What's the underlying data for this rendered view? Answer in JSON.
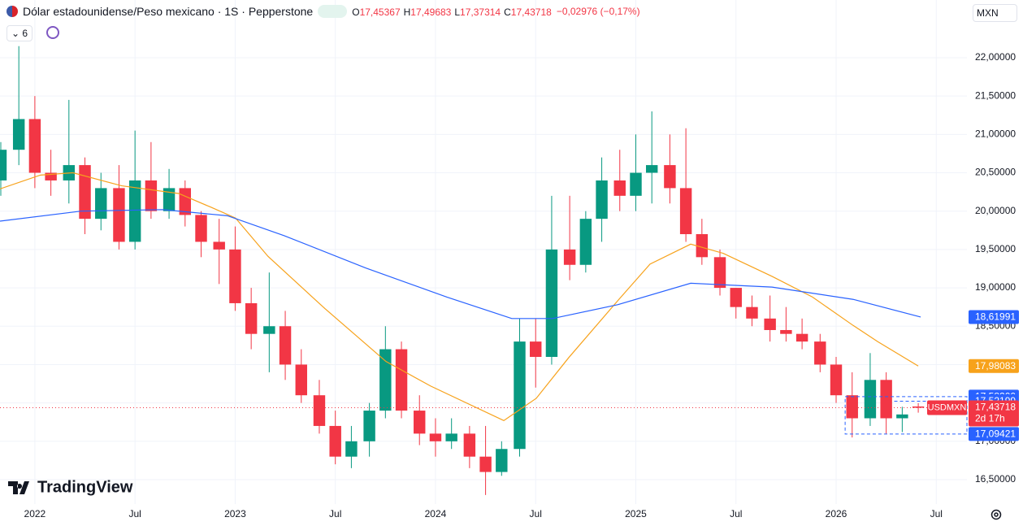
{
  "header": {
    "title": "Dólar estadounidense/Peso mexicano · 1S · Pepperstone",
    "ohlc": [
      {
        "key": "O",
        "text": "17,45367"
      },
      {
        "key": "H",
        "text": "17,49683"
      },
      {
        "key": "L",
        "text": "17,37314"
      },
      {
        "key": "C",
        "text": "17,43718"
      }
    ],
    "change": "−0,02976 (−0,17%)",
    "indicators_count": "6",
    "currency": "MXN"
  },
  "watermark": "TradingView",
  "chart_data": {
    "type": "candlestick",
    "xlim": [
      2021.826,
      2026.653
    ],
    "ylim": [
      16.182,
      22.752
    ],
    "grid": true,
    "xticks": [
      {
        "value": 2022,
        "label": "2022"
      },
      {
        "value": 2022.5,
        "label": "Jul"
      },
      {
        "value": 2023,
        "label": "2023"
      },
      {
        "value": 2023.5,
        "label": "Jul"
      },
      {
        "value": 2024,
        "label": "2024"
      },
      {
        "value": 2024.5,
        "label": "Jul"
      },
      {
        "value": 2025,
        "label": "2025"
      },
      {
        "value": 2025.5,
        "label": "Jul"
      },
      {
        "value": 2026,
        "label": "2026"
      },
      {
        "value": 2026.5,
        "label": "Jul"
      }
    ],
    "yticks": [
      {
        "value": 16.5,
        "label": "16,50000"
      },
      {
        "value": 17,
        "label": "17,00000"
      },
      {
        "value": 17.5,
        "label": "17,50000"
      },
      {
        "value": 18,
        "label": "18,00000"
      },
      {
        "value": 18.5,
        "label": "18,50000"
      },
      {
        "value": 19,
        "label": "19,00000"
      },
      {
        "value": 19.5,
        "label": "19,50000"
      },
      {
        "value": 20,
        "label": "20,00000"
      },
      {
        "value": 20.5,
        "label": "20,50000"
      },
      {
        "value": 21,
        "label": "21,00000"
      },
      {
        "value": 21.5,
        "label": "21,50000"
      },
      {
        "value": 22,
        "label": "22,00000"
      }
    ],
    "up_color": "#089981",
    "down_color": "#f23645",
    "candles": {
      "x": [
        2021.83,
        2021.92,
        2022.0,
        2022.08,
        2022.17,
        2022.25,
        2022.33,
        2022.42,
        2022.5,
        2022.58,
        2022.67,
        2022.75,
        2022.83,
        2022.92,
        2023.0,
        2023.08,
        2023.17,
        2023.25,
        2023.33,
        2023.42,
        2023.5,
        2023.58,
        2023.67,
        2023.75,
        2023.83,
        2023.92,
        2024.0,
        2024.08,
        2024.17,
        2024.25,
        2024.33,
        2024.42,
        2024.5,
        2024.58,
        2024.67,
        2024.75,
        2024.83,
        2024.92,
        2025.0,
        2025.08,
        2025.17,
        2025.25,
        2025.33,
        2025.42,
        2025.5,
        2025.58,
        2025.67,
        2025.75,
        2025.83,
        2025.92,
        2026.0,
        2026.08,
        2026.17,
        2026.25,
        2026.33,
        2026.41
      ],
      "open": [
        20.4,
        20.8,
        21.2,
        20.5,
        20.4,
        20.6,
        19.9,
        20.3,
        19.6,
        20.4,
        20.0,
        20.3,
        19.95,
        19.6,
        19.5,
        18.8,
        18.4,
        18.5,
        18.0,
        17.6,
        17.2,
        16.8,
        17.0,
        17.4,
        18.2,
        17.4,
        17.1,
        17.0,
        17.1,
        16.8,
        16.6,
        16.9,
        18.3,
        18.1,
        19.5,
        19.3,
        19.9,
        20.4,
        20.2,
        20.5,
        20.6,
        20.3,
        19.7,
        19.4,
        19.0,
        18.75,
        18.6,
        18.45,
        18.4,
        18.3,
        18.0,
        17.6,
        17.3,
        17.8,
        17.3,
        17.45367
      ],
      "high": [
        20.9,
        22.15,
        21.5,
        20.8,
        21.45,
        20.7,
        20.5,
        20.6,
        21.05,
        20.9,
        20.55,
        20.4,
        20.0,
        19.9,
        19.8,
        19.0,
        19.2,
        18.7,
        18.2,
        17.8,
        17.4,
        17.2,
        17.5,
        18.5,
        18.3,
        17.6,
        17.3,
        17.3,
        17.2,
        17.2,
        17.0,
        18.6,
        18.6,
        20.2,
        20.2,
        20.0,
        20.7,
        20.8,
        21.0,
        21.3,
        21.0,
        21.08,
        19.9,
        19.5,
        19.0,
        18.9,
        18.9,
        18.75,
        18.6,
        18.4,
        18.1,
        17.9,
        18.15,
        17.9,
        17.45,
        17.49683
      ],
      "low": [
        20.2,
        20.6,
        20.3,
        20.2,
        20.1,
        19.7,
        19.75,
        19.5,
        19.5,
        19.9,
        19.9,
        19.8,
        19.4,
        19.05,
        18.7,
        18.2,
        17.9,
        17.8,
        17.5,
        17.1,
        16.7,
        16.65,
        16.8,
        17.3,
        17.3,
        16.95,
        16.8,
        16.9,
        16.65,
        16.3,
        16.55,
        16.8,
        17.7,
        18.0,
        19.1,
        19.2,
        19.6,
        20.0,
        20.0,
        20.1,
        20.1,
        19.6,
        19.3,
        18.9,
        18.6,
        18.5,
        18.3,
        18.3,
        18.2,
        17.9,
        17.5,
        17.05,
        17.2,
        17.1,
        17.12,
        17.37314
      ],
      "close": [
        20.8,
        21.2,
        20.5,
        20.4,
        20.6,
        19.9,
        20.3,
        19.6,
        20.4,
        20.0,
        20.3,
        19.95,
        19.6,
        19.5,
        18.8,
        18.4,
        18.5,
        18.0,
        17.6,
        17.2,
        16.8,
        17.0,
        17.4,
        18.2,
        17.4,
        17.1,
        17.0,
        17.1,
        16.8,
        16.6,
        16.9,
        18.3,
        18.1,
        19.5,
        19.3,
        19.9,
        20.4,
        20.2,
        20.5,
        20.6,
        20.3,
        19.7,
        19.4,
        19.0,
        18.75,
        18.6,
        18.45,
        18.4,
        18.3,
        18.0,
        17.6,
        17.3,
        17.8,
        17.3,
        17.35,
        17.43718
      ]
    },
    "series": [
      {
        "color": "#f7a21b",
        "x": [
          2021.826,
          2022.028,
          2022.19,
          2022.434,
          2022.718,
          2022.88,
          2023.002,
          2023.164,
          2023.448,
          2023.753,
          2023.976,
          2024.341,
          2024.503,
          2024.665,
          2024.909,
          2025.071,
          2025.274,
          2025.436,
          2025.68,
          2025.882,
          2026.085,
          2026.207,
          2026.41
        ],
        "values": [
          20.29,
          20.47,
          20.5,
          20.33,
          20.23,
          20.05,
          19.91,
          19.41,
          18.73,
          18.04,
          17.72,
          17.27,
          17.56,
          18.09,
          18.83,
          19.31,
          19.57,
          19.45,
          19.15,
          18.88,
          18.51,
          18.3,
          17.98083
        ],
        "last_label": {
          "value": 17.98083,
          "label": "17,98083"
        }
      },
      {
        "color": "#2962ff",
        "x": [
          2021.826,
          2022.231,
          2022.637,
          2022.961,
          2023.245,
          2023.651,
          2024.057,
          2024.381,
          2024.584,
          2024.909,
          2025.274,
          2025.68,
          2026.085,
          2026.422
        ],
        "values": [
          19.87,
          20.0,
          20.02,
          19.94,
          19.68,
          19.26,
          18.88,
          18.6,
          18.6,
          18.78,
          19.06,
          19.01,
          18.85,
          18.61991
        ],
        "last_label": {
          "value": 18.61991,
          "label": "18,61991"
        }
      }
    ],
    "current_price": {
      "value": 17.43718,
      "label": "17,43718",
      "symbol": "USDMXN",
      "countdown": "2d 17h",
      "color": "#f23645"
    },
    "range_box": {
      "start": 2026.045,
      "top": {
        "value": 17.582,
        "label": "17,58200"
      },
      "bottom": {
        "value": 17.09421,
        "label": "17,09421"
      },
      "color": "#2962ff"
    },
    "level": {
      "start": 2026.29,
      "value": 17.52199,
      "label": "17,52199",
      "color": "#2962ff"
    }
  }
}
